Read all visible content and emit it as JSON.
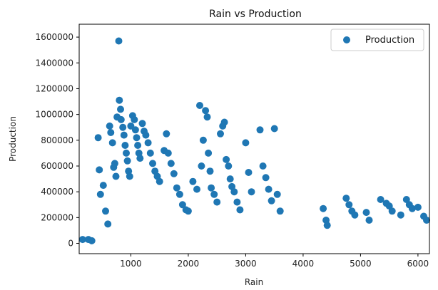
{
  "chart_data": {
    "type": "scatter",
    "title": "Rain vs Production",
    "xlabel": "Rain",
    "ylabel": "Production",
    "xlim": [
      100,
      6200
    ],
    "ylim": [
      -80000,
      1700000
    ],
    "xticks": [
      1000,
      2000,
      3000,
      4000,
      5000,
      6000
    ],
    "yticks": [
      0,
      200000,
      400000,
      600000,
      800000,
      1000000,
      1200000,
      1400000,
      1600000
    ],
    "grid": false,
    "legend": "top-right",
    "color": "#1f77b4",
    "series": [
      {
        "name": "Production",
        "points": [
          [
            160,
            30000
          ],
          [
            260,
            30000
          ],
          [
            320,
            20000
          ],
          [
            430,
            820000
          ],
          [
            450,
            570000
          ],
          [
            470,
            380000
          ],
          [
            520,
            450000
          ],
          [
            560,
            250000
          ],
          [
            600,
            150000
          ],
          [
            630,
            910000
          ],
          [
            650,
            860000
          ],
          [
            680,
            780000
          ],
          [
            700,
            590000
          ],
          [
            720,
            620000
          ],
          [
            740,
            520000
          ],
          [
            760,
            980000
          ],
          [
            790,
            1570000
          ],
          [
            800,
            1110000
          ],
          [
            820,
            1040000
          ],
          [
            830,
            960000
          ],
          [
            860,
            900000
          ],
          [
            880,
            840000
          ],
          [
            900,
            760000
          ],
          [
            920,
            700000
          ],
          [
            940,
            640000
          ],
          [
            960,
            560000
          ],
          [
            980,
            520000
          ],
          [
            1000,
            910000
          ],
          [
            1030,
            990000
          ],
          [
            1060,
            960000
          ],
          [
            1080,
            880000
          ],
          [
            1100,
            820000
          ],
          [
            1120,
            760000
          ],
          [
            1140,
            700000
          ],
          [
            1160,
            660000
          ],
          [
            1200,
            930000
          ],
          [
            1230,
            870000
          ],
          [
            1260,
            840000
          ],
          [
            1300,
            780000
          ],
          [
            1340,
            700000
          ],
          [
            1380,
            620000
          ],
          [
            1420,
            560000
          ],
          [
            1460,
            520000
          ],
          [
            1500,
            480000
          ],
          [
            1580,
            720000
          ],
          [
            1620,
            850000
          ],
          [
            1650,
            700000
          ],
          [
            1700,
            620000
          ],
          [
            1750,
            540000
          ],
          [
            1800,
            430000
          ],
          [
            1850,
            380000
          ],
          [
            1900,
            300000
          ],
          [
            1960,
            260000
          ],
          [
            2000,
            250000
          ],
          [
            2080,
            480000
          ],
          [
            2150,
            420000
          ],
          [
            2200,
            1070000
          ],
          [
            2230,
            600000
          ],
          [
            2260,
            800000
          ],
          [
            2300,
            1030000
          ],
          [
            2330,
            980000
          ],
          [
            2350,
            700000
          ],
          [
            2380,
            560000
          ],
          [
            2400,
            430000
          ],
          [
            2450,
            380000
          ],
          [
            2500,
            320000
          ],
          [
            2560,
            850000
          ],
          [
            2600,
            910000
          ],
          [
            2630,
            940000
          ],
          [
            2660,
            650000
          ],
          [
            2700,
            600000
          ],
          [
            2730,
            500000
          ],
          [
            2760,
            440000
          ],
          [
            2800,
            400000
          ],
          [
            2850,
            320000
          ],
          [
            2900,
            260000
          ],
          [
            3000,
            780000
          ],
          [
            3050,
            550000
          ],
          [
            3100,
            400000
          ],
          [
            3250,
            880000
          ],
          [
            3300,
            600000
          ],
          [
            3350,
            510000
          ],
          [
            3400,
            420000
          ],
          [
            3450,
            330000
          ],
          [
            3500,
            890000
          ],
          [
            3550,
            380000
          ],
          [
            3600,
            250000
          ],
          [
            4350,
            270000
          ],
          [
            4400,
            180000
          ],
          [
            4420,
            140000
          ],
          [
            4750,
            350000
          ],
          [
            4800,
            300000
          ],
          [
            4850,
            250000
          ],
          [
            4900,
            220000
          ],
          [
            5100,
            240000
          ],
          [
            5150,
            180000
          ],
          [
            5350,
            340000
          ],
          [
            5450,
            310000
          ],
          [
            5500,
            290000
          ],
          [
            5550,
            250000
          ],
          [
            5700,
            220000
          ],
          [
            5800,
            340000
          ],
          [
            5850,
            300000
          ],
          [
            5900,
            270000
          ],
          [
            6000,
            280000
          ],
          [
            6100,
            210000
          ],
          [
            6150,
            180000
          ]
        ]
      }
    ]
  }
}
